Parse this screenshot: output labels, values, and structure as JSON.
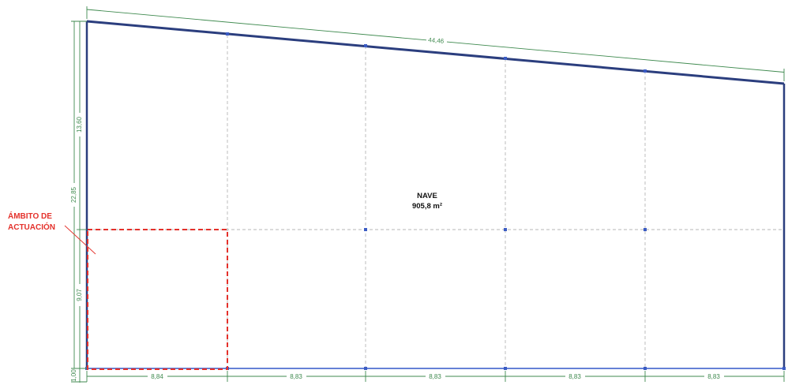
{
  "room": {
    "name": "NAVE",
    "area": "905,8 m²"
  },
  "callout": {
    "line1": "ÁMBITO DE",
    "line2": "ACTUACIÓN",
    "color": "#e4312b"
  },
  "dimensions": {
    "top_overall": "44,46",
    "left_overall": "22,85",
    "left_upper": "13,60",
    "left_lower": "9,07",
    "left_bottom": "1,00",
    "bottom_spans": [
      "8,84",
      "8,83",
      "8,83",
      "8,83",
      "8,83"
    ]
  },
  "colors": {
    "wall": "#2b3e7e",
    "grid_node": "#3b5cc4",
    "dimension": "#3f8a4f",
    "grid_line": "#b5b5b5"
  }
}
